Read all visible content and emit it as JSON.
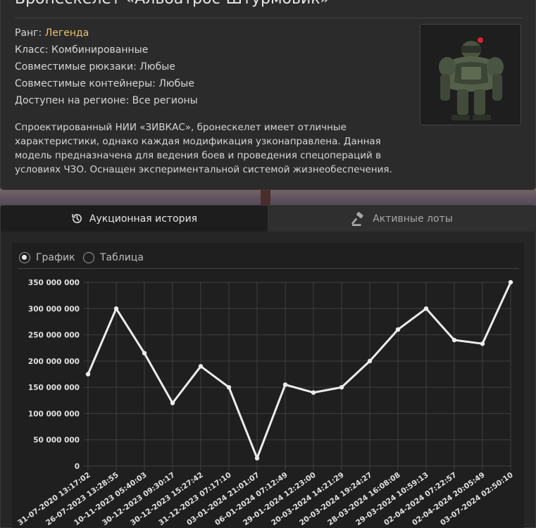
{
  "item": {
    "title": "Бронескелет «Альбатрос-Штурмовик»",
    "rank_label": "Ранг:",
    "rank_value": "Легенда",
    "class_text": "Класс: Комбинированные",
    "backpacks_text": "Совместимые рюкзаки: Любые",
    "containers_text": "Совместимые контейнеры: Любые",
    "region_text": "Доступен на регионе: Все регионы",
    "description": "Спроектированный НИИ «ЗИВКАС», бронескелет имеет отличные характеристики, однако каждая модификация узконаправлена. Данная модель предназначена для ведения боев и проведения спецопераций в условиях ЧЗО. Оснащен экспериментальной системой жизнеобеспечения."
  },
  "tabs": {
    "history_label": "Аукционная история",
    "history_icon": "history-icon",
    "lots_label": "Активные лоты",
    "lots_icon": "gavel-icon"
  },
  "view_toggle": {
    "chart_label": "График",
    "table_label": "Таблица",
    "selected": "chart"
  },
  "colors": {
    "rank": "#e8c56a",
    "line": "#ececec",
    "grid": "#3f3f41"
  },
  "chart_data": {
    "type": "line",
    "x": [
      "31-07-2020 13:17:02",
      "26-07-2023 13:28:55",
      "10-11-2023 05:40:03",
      "30-12-2023 09:30:17",
      "30-12-2023 15:27:42",
      "31-12-2023 07:17:10",
      "03-01-2024 21:01:07",
      "06-01-2024 07:12:49",
      "29-01-2024 12:23:00",
      "20-03-2024 14:21:29",
      "20-03-2024 19:24:27",
      "28-03-2024 16:08:08",
      "29-03-2024 10:59:13",
      "02-04-2024 07:22:57",
      "02-04-2024 20:05:49",
      "03-07-2024 02:50:10"
    ],
    "values": [
      175000000,
      300000000,
      215000000,
      120000000,
      190000000,
      150000000,
      15000000,
      155000000,
      140000000,
      150000000,
      200000000,
      260000000,
      300000000,
      240000000,
      233000000,
      350000000
    ],
    "ylim": [
      0,
      350000000
    ],
    "yticks": [
      "0",
      "50 000 000",
      "100 000 000",
      "150 000 000",
      "200 000 000",
      "250 000 000",
      "300 000 000",
      "350 000 000"
    ],
    "grid": true
  }
}
